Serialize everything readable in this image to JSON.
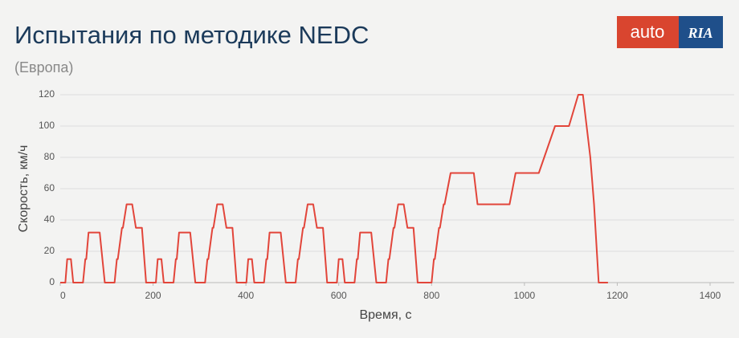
{
  "chart_data": {
    "type": "line",
    "title": "Испытания по методике NEDC",
    "subtitle": "(Европа)",
    "x_label": "Время, с",
    "y_label": "Скорость, км/ч",
    "x": [
      0,
      11,
      15,
      23,
      28,
      49,
      54,
      56,
      61,
      85,
      96,
      117,
      122,
      124,
      133,
      135,
      143,
      155,
      163,
      176,
      185,
      195,
      206,
      210,
      218,
      223,
      244,
      249,
      251,
      256,
      280,
      291,
      312,
      317,
      319,
      328,
      330,
      338,
      350,
      358,
      371,
      380,
      390,
      401,
      405,
      413,
      418,
      439,
      444,
      446,
      451,
      475,
      486,
      507,
      512,
      514,
      523,
      525,
      533,
      545,
      553,
      566,
      575,
      585,
      596,
      600,
      608,
      613,
      634,
      639,
      641,
      646,
      670,
      681,
      702,
      707,
      709,
      718,
      720,
      728,
      740,
      748,
      761,
      770,
      780,
      800,
      805,
      807,
      816,
      818,
      826,
      828,
      841,
      891,
      899,
      968,
      981,
      1031,
      1066,
      1096,
      1116,
      1126,
      1142,
      1150,
      1160,
      1180
    ],
    "series": [
      {
        "color": "#e2453a",
        "values": [
          0,
          0,
          15,
          15,
          0,
          0,
          15,
          15,
          32,
          32,
          0,
          0,
          15,
          15,
          35,
          35,
          50,
          50,
          35,
          35,
          0,
          0,
          0,
          15,
          15,
          0,
          0,
          15,
          15,
          32,
          32,
          0,
          0,
          15,
          15,
          35,
          35,
          50,
          50,
          35,
          35,
          0,
          0,
          0,
          15,
          15,
          0,
          0,
          15,
          15,
          32,
          32,
          0,
          0,
          15,
          15,
          35,
          35,
          50,
          50,
          35,
          35,
          0,
          0,
          0,
          15,
          15,
          0,
          0,
          15,
          15,
          32,
          32,
          0,
          0,
          15,
          15,
          35,
          35,
          50,
          50,
          35,
          35,
          0,
          0,
          0,
          15,
          15,
          35,
          35,
          50,
          50,
          70,
          70,
          50,
          50,
          70,
          70,
          100,
          100,
          120,
          120,
          80,
          50,
          0,
          0
        ]
      }
    ],
    "xlim": [
      0,
      1400
    ],
    "ylim": [
      0,
      120
    ],
    "xticks": [
      0,
      200,
      400,
      600,
      800,
      1000,
      1200,
      1400
    ],
    "yticks": [
      0,
      20,
      40,
      60,
      80,
      100,
      120
    ],
    "grid": true
  },
  "logo": {
    "text": "auto",
    "mark": "RIA"
  }
}
